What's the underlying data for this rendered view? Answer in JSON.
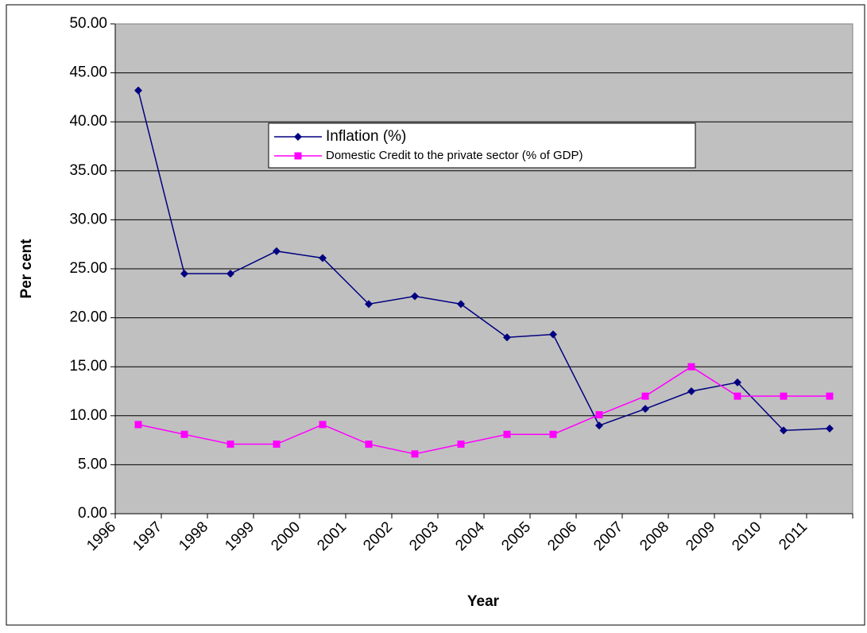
{
  "chart_data": {
    "type": "line",
    "xlabel": "Year",
    "ylabel": "Per cent",
    "categories": [
      "1996",
      "1997",
      "1998",
      "1999",
      "2000",
      "2001",
      "2002",
      "2003",
      "2004",
      "2005",
      "2006",
      "2007",
      "2008",
      "2009",
      "2010",
      "2011"
    ],
    "series": [
      {
        "name": "Inflation (%)",
        "color": "#000080",
        "marker": "diamond",
        "values": [
          43.2,
          24.5,
          24.5,
          26.8,
          26.1,
          21.4,
          22.2,
          21.4,
          18.0,
          18.3,
          9.0,
          10.7,
          12.5,
          13.4,
          8.5,
          8.7
        ]
      },
      {
        "name": "Domestic Credit to the private sector (% of GDP)",
        "color": "#FF00FF",
        "marker": "square",
        "values": [
          9.1,
          8.1,
          7.1,
          7.1,
          9.1,
          7.1,
          6.1,
          7.1,
          8.1,
          8.1,
          10.1,
          12.0,
          15.0,
          12.0,
          12.0,
          12.0
        ]
      }
    ],
    "ylim": [
      0,
      50
    ],
    "yticks": [
      {
        "value": 0,
        "label": "0.00"
      },
      {
        "value": 5,
        "label": "5.00"
      },
      {
        "value": 10,
        "label": "10.00"
      },
      {
        "value": 15,
        "label": "15.00"
      },
      {
        "value": 20,
        "label": "20.00"
      },
      {
        "value": 25,
        "label": "25.00"
      },
      {
        "value": 30,
        "label": "30.00"
      },
      {
        "value": 35,
        "label": "35.00"
      },
      {
        "value": 40,
        "label": "40.00"
      },
      {
        "value": 45,
        "label": "45.00"
      },
      {
        "value": 50,
        "label": "50.00"
      }
    ],
    "grid": true,
    "background": "#C0C0C0"
  }
}
